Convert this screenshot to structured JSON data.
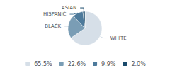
{
  "chart_data": {
    "type": "pie",
    "categories": [
      "WHITE",
      "BLACK",
      "HISPANIC",
      "ASIAN"
    ],
    "values": [
      65.5,
      22.6,
      9.9,
      2.0
    ],
    "value_labels": [
      "65.5%",
      "22.6%",
      "9.9%",
      "2.0%"
    ],
    "colors": [
      "#d6dfe8",
      "#7a9db5",
      "#4d7a9b",
      "#1a4a6b"
    ],
    "legend": "bottom"
  }
}
